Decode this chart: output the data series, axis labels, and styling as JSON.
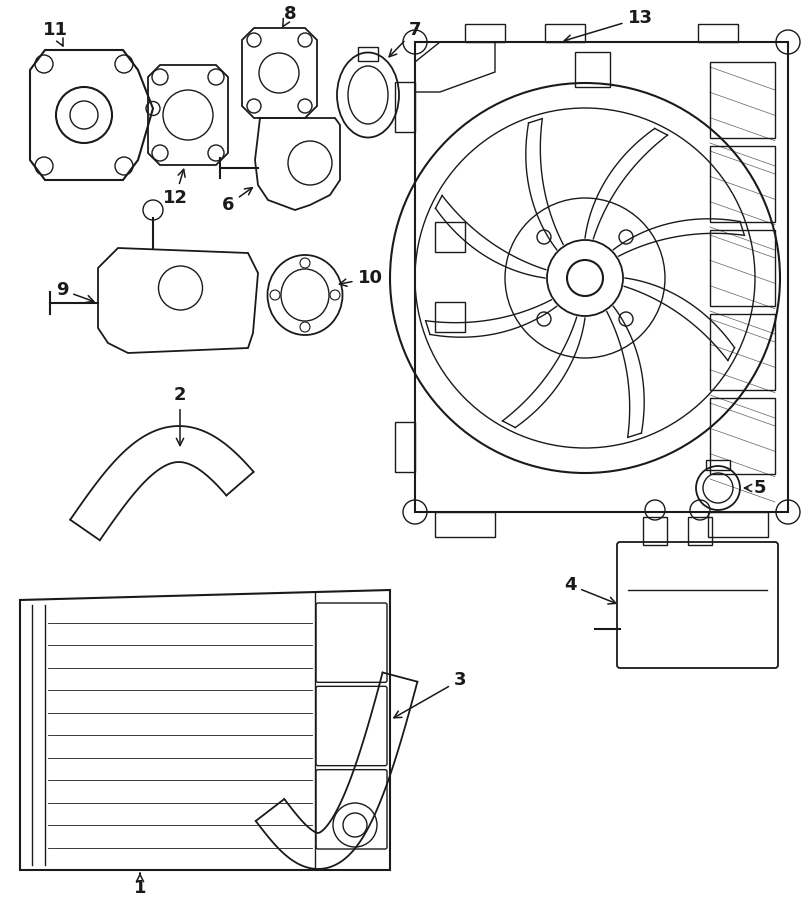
{
  "bg_color": "#ffffff",
  "line_color": "#1a1a1a",
  "fig_width": 8.05,
  "fig_height": 9.0,
  "dpi": 100
}
